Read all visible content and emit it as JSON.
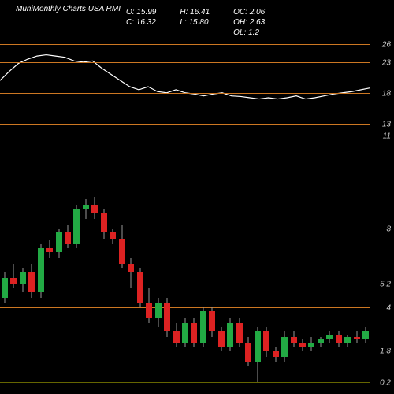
{
  "header": {
    "title": "MuniMonthly Charts USA RMI",
    "ohlc": {
      "o_label": "O: 15.99",
      "h_label": "H: 16.41",
      "oc_label": "OC: 2.06",
      "c_label": "C: 16.32",
      "l_label": "L: 15.80",
      "oh_label": "OH: 2.63",
      "ol_label": "OL: 1.2"
    }
  },
  "colors": {
    "bg": "#000000",
    "text": "#ffffff",
    "axis": "#cccccc",
    "hline_orange": "#cc7722",
    "hline_blue": "#3366cc",
    "hline_yellow": "#666600",
    "line_series": "#ffffff",
    "candle_up": "#22aa44",
    "candle_down": "#dd2222",
    "wick": "#999999"
  },
  "top_panel": {
    "ymin": 10,
    "ymax": 28,
    "hlines": [
      {
        "y": 26,
        "label": "26",
        "color": "#cc7722"
      },
      {
        "y": 23,
        "label": "23",
        "color": "#cc7722"
      },
      {
        "y": 18,
        "label": "18",
        "color": "#cc7722"
      },
      {
        "y": 13,
        "label": "13",
        "color": "#cc7722"
      },
      {
        "y": 11,
        "label": "11",
        "color": "#cc7722"
      }
    ],
    "line_points": [
      20.0,
      21.5,
      22.8,
      23.5,
      24.0,
      24.2,
      24.0,
      23.8,
      23.2,
      23.0,
      23.2,
      22.0,
      21.0,
      20.0,
      19.0,
      18.5,
      19.0,
      18.2,
      18.0,
      18.5,
      18.0,
      17.8,
      17.5,
      17.8,
      18.0,
      17.5,
      17.4,
      17.2,
      17.0,
      17.2,
      17.0,
      17.2,
      17.5,
      17.0,
      17.2,
      17.5,
      17.8,
      18.0,
      18.2,
      18.5,
      18.8
    ]
  },
  "bottom_panel": {
    "ymin": 0,
    "ymax": 12,
    "hlines": [
      {
        "y": 8,
        "label": "8",
        "color": "#cc7722"
      },
      {
        "y": 5.2,
        "label": "5.2",
        "color": "#cc7722"
      },
      {
        "y": 4,
        "label": "4",
        "color": "#cc7722"
      },
      {
        "y": 1.8,
        "label": "1.8",
        "color": "#3366cc"
      },
      {
        "y": 0.2,
        "label": "0.2",
        "color": "#666600"
      }
    ],
    "candles": [
      {
        "o": 4.5,
        "h": 5.8,
        "l": 4.2,
        "c": 5.5,
        "up": true
      },
      {
        "o": 5.5,
        "h": 6.2,
        "l": 5.0,
        "c": 5.2,
        "up": false
      },
      {
        "o": 5.2,
        "h": 6.0,
        "l": 4.8,
        "c": 5.8,
        "up": true
      },
      {
        "o": 5.8,
        "h": 6.2,
        "l": 4.5,
        "c": 4.8,
        "up": false
      },
      {
        "o": 4.8,
        "h": 7.2,
        "l": 4.5,
        "c": 7.0,
        "up": true
      },
      {
        "o": 7.0,
        "h": 7.4,
        "l": 6.5,
        "c": 6.8,
        "up": false
      },
      {
        "o": 6.8,
        "h": 8.0,
        "l": 6.5,
        "c": 7.8,
        "up": true
      },
      {
        "o": 7.8,
        "h": 8.2,
        "l": 7.0,
        "c": 7.2,
        "up": false
      },
      {
        "o": 7.2,
        "h": 9.2,
        "l": 7.0,
        "c": 9.0,
        "up": true
      },
      {
        "o": 9.0,
        "h": 9.5,
        "l": 8.5,
        "c": 9.2,
        "up": true
      },
      {
        "o": 9.2,
        "h": 9.6,
        "l": 8.5,
        "c": 8.8,
        "up": false
      },
      {
        "o": 8.8,
        "h": 9.0,
        "l": 7.5,
        "c": 7.8,
        "up": false
      },
      {
        "o": 7.8,
        "h": 8.0,
        "l": 7.2,
        "c": 7.5,
        "up": false
      },
      {
        "o": 7.5,
        "h": 8.2,
        "l": 6.0,
        "c": 6.2,
        "up": false
      },
      {
        "o": 6.2,
        "h": 6.5,
        "l": 5.0,
        "c": 5.8,
        "up": false
      },
      {
        "o": 5.8,
        "h": 6.0,
        "l": 4.0,
        "c": 4.2,
        "up": false
      },
      {
        "o": 4.2,
        "h": 5.0,
        "l": 3.2,
        "c": 3.5,
        "up": false
      },
      {
        "o": 3.5,
        "h": 4.5,
        "l": 3.0,
        "c": 4.2,
        "up": true
      },
      {
        "o": 4.2,
        "h": 4.5,
        "l": 2.5,
        "c": 2.8,
        "up": false
      },
      {
        "o": 2.8,
        "h": 3.2,
        "l": 2.0,
        "c": 2.2,
        "up": false
      },
      {
        "o": 2.2,
        "h": 3.5,
        "l": 2.0,
        "c": 3.2,
        "up": true
      },
      {
        "o": 3.2,
        "h": 3.5,
        "l": 2.0,
        "c": 2.2,
        "up": false
      },
      {
        "o": 2.2,
        "h": 4.0,
        "l": 2.0,
        "c": 3.8,
        "up": true
      },
      {
        "o": 3.8,
        "h": 4.0,
        "l": 2.5,
        "c": 2.8,
        "up": false
      },
      {
        "o": 2.8,
        "h": 3.0,
        "l": 1.8,
        "c": 2.0,
        "up": false
      },
      {
        "o": 2.0,
        "h": 3.5,
        "l": 1.8,
        "c": 3.2,
        "up": true
      },
      {
        "o": 3.2,
        "h": 3.5,
        "l": 2.0,
        "c": 2.2,
        "up": false
      },
      {
        "o": 2.2,
        "h": 2.5,
        "l": 1.0,
        "c": 1.2,
        "up": false
      },
      {
        "o": 1.2,
        "h": 3.0,
        "l": 0.2,
        "c": 2.8,
        "up": true
      },
      {
        "o": 2.8,
        "h": 3.0,
        "l": 1.5,
        "c": 1.8,
        "up": false
      },
      {
        "o": 1.8,
        "h": 2.0,
        "l": 1.2,
        "c": 1.5,
        "up": false
      },
      {
        "o": 1.5,
        "h": 2.8,
        "l": 1.2,
        "c": 2.5,
        "up": true
      },
      {
        "o": 2.5,
        "h": 2.8,
        "l": 2.0,
        "c": 2.2,
        "up": false
      },
      {
        "o": 2.2,
        "h": 2.4,
        "l": 1.8,
        "c": 2.0,
        "up": false
      },
      {
        "o": 2.0,
        "h": 2.5,
        "l": 1.8,
        "c": 2.2,
        "up": true
      },
      {
        "o": 2.2,
        "h": 2.5,
        "l": 2.0,
        "c": 2.4,
        "up": true
      },
      {
        "o": 2.4,
        "h": 2.8,
        "l": 2.2,
        "c": 2.6,
        "up": true
      },
      {
        "o": 2.6,
        "h": 2.8,
        "l": 2.0,
        "c": 2.2,
        "up": false
      },
      {
        "o": 2.2,
        "h": 2.6,
        "l": 2.0,
        "c": 2.5,
        "up": true
      },
      {
        "o": 2.5,
        "h": 2.8,
        "l": 2.2,
        "c": 2.4,
        "up": false
      },
      {
        "o": 2.4,
        "h": 3.0,
        "l": 2.2,
        "c": 2.8,
        "up": true
      }
    ]
  }
}
